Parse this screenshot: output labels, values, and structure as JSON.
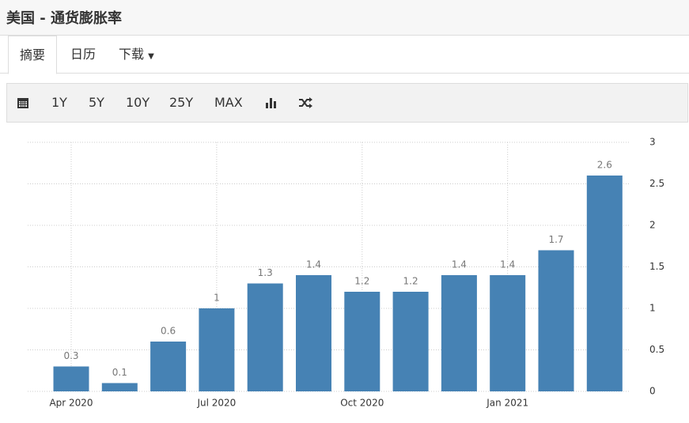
{
  "header": {
    "title": "美国 - 通货膨胀率"
  },
  "tabs": [
    "摘要",
    "日历",
    "下载"
  ],
  "toolbar": [
    "1Y",
    "5Y",
    "10Y",
    "25Y",
    "MAX"
  ],
  "chart_data": {
    "type": "bar",
    "categories": [
      "Apr 2020",
      null,
      null,
      "Jul 2020",
      null,
      null,
      "Oct 2020",
      null,
      null,
      "Jan 2021",
      null,
      null
    ],
    "values": [
      0.3,
      0.1,
      0.6,
      1,
      1.3,
      1.4,
      1.2,
      1.2,
      1.4,
      1.4,
      1.7,
      2.6
    ],
    "color": "#4682b4",
    "ylim": [
      0,
      3
    ],
    "yticks": [
      0,
      0.5,
      1,
      1.5,
      2,
      2.5,
      3
    ],
    "grid": true,
    "y_axis_side": "right"
  }
}
